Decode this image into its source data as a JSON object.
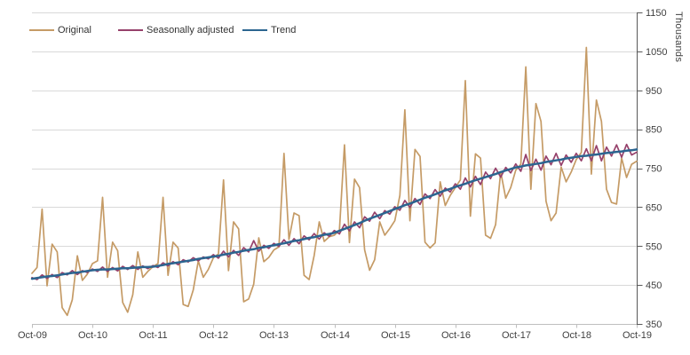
{
  "chart": {
    "y_axis": {
      "title": "Thousands",
      "min": 350,
      "max": 1150,
      "tick_step": 100,
      "ticks": [
        350,
        450,
        550,
        650,
        750,
        850,
        950,
        1050,
        1150
      ],
      "side": "right",
      "label_color": "#404040",
      "axis_color": "#595959"
    },
    "x_axis": {
      "ticks": [
        "Oct-09",
        "Oct-10",
        "Oct-11",
        "Oct-12",
        "Oct-13",
        "Oct-14",
        "Oct-15",
        "Oct-16",
        "Oct-17",
        "Oct-18",
        "Oct-19"
      ],
      "axis_color": "#BFBFBF",
      "label_color": "#404040"
    },
    "gridline_color": "#D9D9D9",
    "legend_position": "top-left-inside"
  },
  "chart_data": {
    "type": "line",
    "title": "",
    "frequency": "monthly",
    "x_start": "Oct-09",
    "x_end": "Oct-19",
    "n_points": 121,
    "categories": [
      "Oct-09",
      "Oct-10",
      "Oct-11",
      "Oct-12",
      "Oct-13",
      "Oct-14",
      "Oct-15",
      "Oct-16",
      "Oct-17",
      "Oct-18",
      "Oct-19"
    ],
    "ylabel": "Thousands",
    "ylim": [
      350,
      1150
    ],
    "grid": true,
    "series": [
      {
        "name": "Original",
        "color": "#C59B66",
        "width": 1.7,
        "values": [
          480,
          495,
          645,
          448,
          555,
          535,
          392,
          372,
          412,
          525,
          462,
          478,
          505,
          512,
          675,
          470,
          560,
          538,
          405,
          380,
          425,
          535,
          470,
          485,
          497,
          505,
          675,
          475,
          560,
          545,
          400,
          395,
          437,
          512,
          470,
          490,
          520,
          530,
          720,
          487,
          612,
          594,
          407,
          414,
          452,
          571,
          510,
          521,
          540,
          548,
          788,
          567,
          635,
          628,
          475,
          464,
          526,
          612,
          562,
          574,
          578,
          590,
          810,
          559,
          722,
          700,
          540,
          488,
          515,
          612,
          578,
          595,
          615,
          680,
          900,
          615,
          798,
          780,
          560,
          545,
          558,
          715,
          654,
          680,
          700,
          720,
          975,
          627,
          787,
          776,
          578,
          570,
          605,
          741,
          673,
          700,
          745,
          760,
          1010,
          696,
          916,
          870,
          665,
          615,
          635,
          753,
          715,
          740,
          772,
          790,
          1060,
          735,
          925,
          870,
          696,
          662,
          658,
          776,
          726,
          760,
          768
        ]
      },
      {
        "name": "Seasonally adjusted",
        "color": "#96416B",
        "width": 1.7,
        "values": [
          469,
          464,
          476,
          467,
          477,
          469,
          482,
          476,
          487,
          477,
          487,
          482,
          491,
          485,
          496,
          485,
          495,
          486,
          498,
          490,
          500,
          490,
          499,
          492,
          500,
          495,
          507,
          499,
          510,
          502,
          515,
          509,
          520,
          512,
          522,
          517,
          528,
          519,
          537,
          522,
          539,
          526,
          546,
          535,
          564,
          537,
          552,
          544,
          557,
          549,
          566,
          552,
          569,
          556,
          576,
          566,
          582,
          568,
          584,
          575,
          590,
          581,
          606,
          589,
          612,
          597,
          625,
          614,
          637,
          620,
          641,
          632,
          651,
          642,
          667,
          649,
          672,
          657,
          684,
          672,
          695,
          678,
          699,
          689,
          710,
          696,
          725,
          702,
          729,
          708,
          740,
          723,
          750,
          727,
          752,
          738,
          761,
          742,
          785,
          744,
          773,
          745,
          781,
          759,
          788,
          757,
          784,
          765,
          788,
          769,
          800,
          769,
          808,
          769,
          804,
          781,
          810,
          778,
          811,
          784,
          791
        ]
      },
      {
        "name": "Trend",
        "color": "#2C6590",
        "width": 2.5,
        "values": [
          466,
          468,
          470,
          472,
          473,
          475,
          477,
          479,
          481,
          482,
          484,
          486,
          488,
          489,
          490,
          490,
          491,
          492,
          493,
          493,
          494,
          495,
          496,
          496,
          497,
          499,
          501,
          504,
          506,
          508,
          510,
          512,
          514,
          517,
          519,
          521,
          523,
          525,
          528,
          530,
          533,
          535,
          538,
          540,
          542,
          545,
          547,
          550,
          552,
          555,
          557,
          560,
          563,
          565,
          568,
          571,
          573,
          576,
          579,
          581,
          584,
          589,
          594,
          599,
          604,
          609,
          615,
          620,
          625,
          630,
          635,
          640,
          645,
          650,
          655,
          659,
          664,
          669,
          674,
          678,
          683,
          688,
          693,
          697,
          702,
          706,
          710,
          715,
          719,
          723,
          727,
          731,
          735,
          740,
          744,
          748,
          752,
          754,
          757,
          759,
          761,
          763,
          766,
          768,
          770,
          772,
          775,
          777,
          779,
          781,
          782,
          784,
          785,
          787,
          789,
          790,
          792,
          793,
          795,
          796,
          798
        ]
      }
    ]
  }
}
